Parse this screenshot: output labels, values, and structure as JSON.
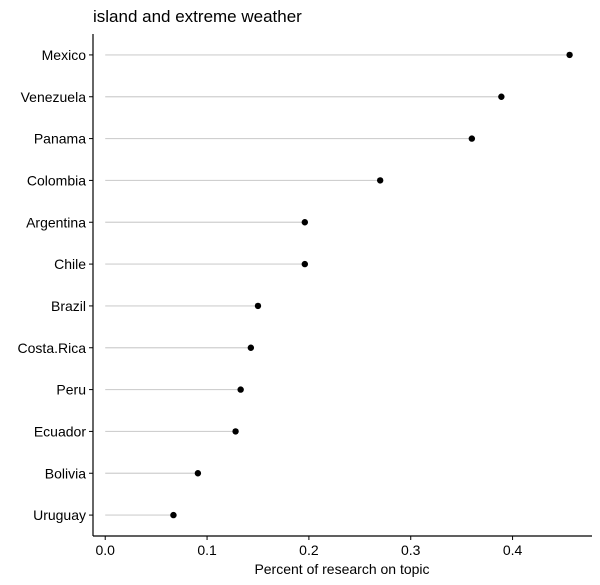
{
  "chart_data": {
    "type": "lollipop",
    "title": "island and extreme weather",
    "xlabel": "Percent of research on topic",
    "ylabel": "",
    "xlim": [
      -0.012,
      0.478
    ],
    "xticks": [
      0,
      0.1,
      0.2,
      0.3,
      0.4
    ],
    "xtick_labels": [
      "0.0",
      "0.1",
      "0.2",
      "0.3",
      "0.4"
    ],
    "grid": false,
    "colors": {
      "stem": "#cfcfcf",
      "point": "#000000",
      "axis": "#000000"
    },
    "categories": [
      "Mexico",
      "Venezuela",
      "Panama",
      "Colombia",
      "Argentina",
      "Chile",
      "Brazil",
      "Costa.Rica",
      "Peru",
      "Ecuador",
      "Bolivia",
      "Uruguay"
    ],
    "values": [
      0.456,
      0.389,
      0.36,
      0.27,
      0.196,
      0.196,
      0.15,
      0.143,
      0.133,
      0.128,
      0.091,
      0.067
    ]
  }
}
